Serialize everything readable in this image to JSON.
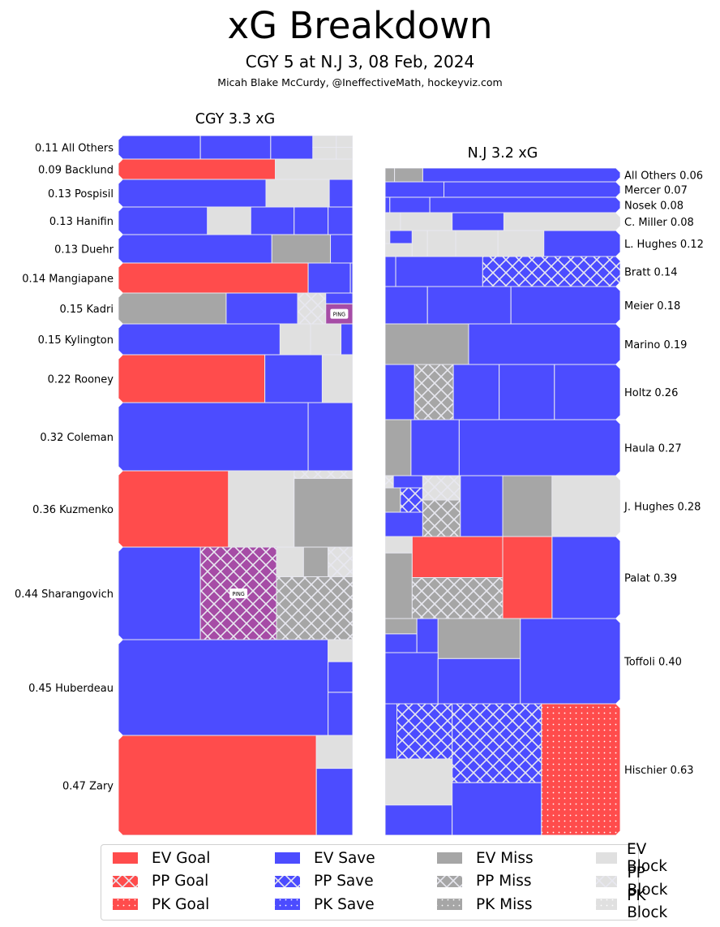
{
  "header": {
    "title": "xG Breakdown",
    "subtitle": "CGY 5 at N.J 3, 08 Feb, 2024",
    "credit": "Micah Blake McCurdy, @IneffectiveMath, hockeyviz.com"
  },
  "colors": {
    "goal": "#ff4c4c",
    "save": "#4c4cff",
    "miss": "#a6a6a6",
    "block": "#e0e0e0",
    "ping": "#a64ca6",
    "edge": "#e8e8f0"
  },
  "chart_data": {
    "type": "treemap",
    "title": "xG Breakdown",
    "teams": [
      {
        "name": "CGY",
        "label": "CGY 3.3 xG",
        "total_xg": 3.3,
        "players": [
          {
            "name": "All Others",
            "xg": 0.11,
            "label": "0.11 All Others"
          },
          {
            "name": "Backlund",
            "xg": 0.09,
            "label": "0.09 Backlund"
          },
          {
            "name": "Pospisil",
            "xg": 0.13,
            "label": "0.13 Pospisil"
          },
          {
            "name": "Hanifin",
            "xg": 0.13,
            "label": "0.13 Hanifin"
          },
          {
            "name": "Duehr",
            "xg": 0.13,
            "label": "0.13 Duehr"
          },
          {
            "name": "Mangiapane",
            "xg": 0.14,
            "label": "0.14 Mangiapane"
          },
          {
            "name": "Kadri",
            "xg": 0.15,
            "label": "0.15 Kadri"
          },
          {
            "name": "Kylington",
            "xg": 0.15,
            "label": "0.15 Kylington"
          },
          {
            "name": "Rooney",
            "xg": 0.22,
            "label": "0.22 Rooney"
          },
          {
            "name": "Coleman",
            "xg": 0.32,
            "label": "0.32 Coleman"
          },
          {
            "name": "Kuzmenko",
            "xg": 0.36,
            "label": "0.36 Kuzmenko"
          },
          {
            "name": "Sharangovich",
            "xg": 0.44,
            "label": "0.44 Sharangovich"
          },
          {
            "name": "Huberdeau",
            "xg": 0.45,
            "label": "0.45 Huberdeau"
          },
          {
            "name": "Zary",
            "xg": 0.47,
            "label": "0.47 Zary"
          }
        ]
      },
      {
        "name": "N.J",
        "label": "N.J 3.2 xG",
        "total_xg": 3.2,
        "players": [
          {
            "name": "All Others",
            "xg": 0.06,
            "label": "All Others 0.06"
          },
          {
            "name": "Mercer",
            "xg": 0.07,
            "label": "Mercer 0.07"
          },
          {
            "name": "Nosek",
            "xg": 0.08,
            "label": "Nosek 0.08"
          },
          {
            "name": "C. Miller",
            "xg": 0.08,
            "label": "C. Miller 0.08"
          },
          {
            "name": "L. Hughes",
            "xg": 0.12,
            "label": "L. Hughes 0.12"
          },
          {
            "name": "Bratt",
            "xg": 0.14,
            "label": "Bratt 0.14"
          },
          {
            "name": "Meier",
            "xg": 0.18,
            "label": "Meier 0.18"
          },
          {
            "name": "Marino",
            "xg": 0.19,
            "label": "Marino 0.19"
          },
          {
            "name": "Holtz",
            "xg": 0.26,
            "label": "Holtz 0.26"
          },
          {
            "name": "Haula",
            "xg": 0.27,
            "label": "Haula 0.27"
          },
          {
            "name": "J. Hughes",
            "xg": 0.28,
            "label": "J. Hughes 0.28"
          },
          {
            "name": "Palat",
            "xg": 0.39,
            "label": "Palat 0.39"
          },
          {
            "name": "Toffoli",
            "xg": 0.4,
            "label": "Toffoli 0.40"
          },
          {
            "name": "Hischier",
            "xg": 0.63,
            "label": "Hischier 0.63"
          }
        ]
      }
    ],
    "annotations": [
      "PING",
      "PING"
    ],
    "legend": {
      "position": "bottom",
      "entries": [
        {
          "label": "EV Goal",
          "type": "goal",
          "pattern": "solid"
        },
        {
          "label": "PP Goal",
          "type": "goal",
          "pattern": "cross"
        },
        {
          "label": "PK Goal",
          "type": "goal",
          "pattern": "dots"
        },
        {
          "label": "EV Save",
          "type": "save",
          "pattern": "solid"
        },
        {
          "label": "PP Save",
          "type": "save",
          "pattern": "cross"
        },
        {
          "label": "PK Save",
          "type": "save",
          "pattern": "dots"
        },
        {
          "label": "EV Miss",
          "type": "miss",
          "pattern": "solid"
        },
        {
          "label": "PP Miss",
          "type": "miss",
          "pattern": "cross"
        },
        {
          "label": "PK Miss",
          "type": "miss",
          "pattern": "dots"
        },
        {
          "label": "EV Block",
          "type": "block",
          "pattern": "solid"
        },
        {
          "label": "PP Block",
          "type": "block",
          "pattern": "cross"
        },
        {
          "label": "PK Block",
          "type": "block",
          "pattern": "dots"
        }
      ]
    }
  }
}
